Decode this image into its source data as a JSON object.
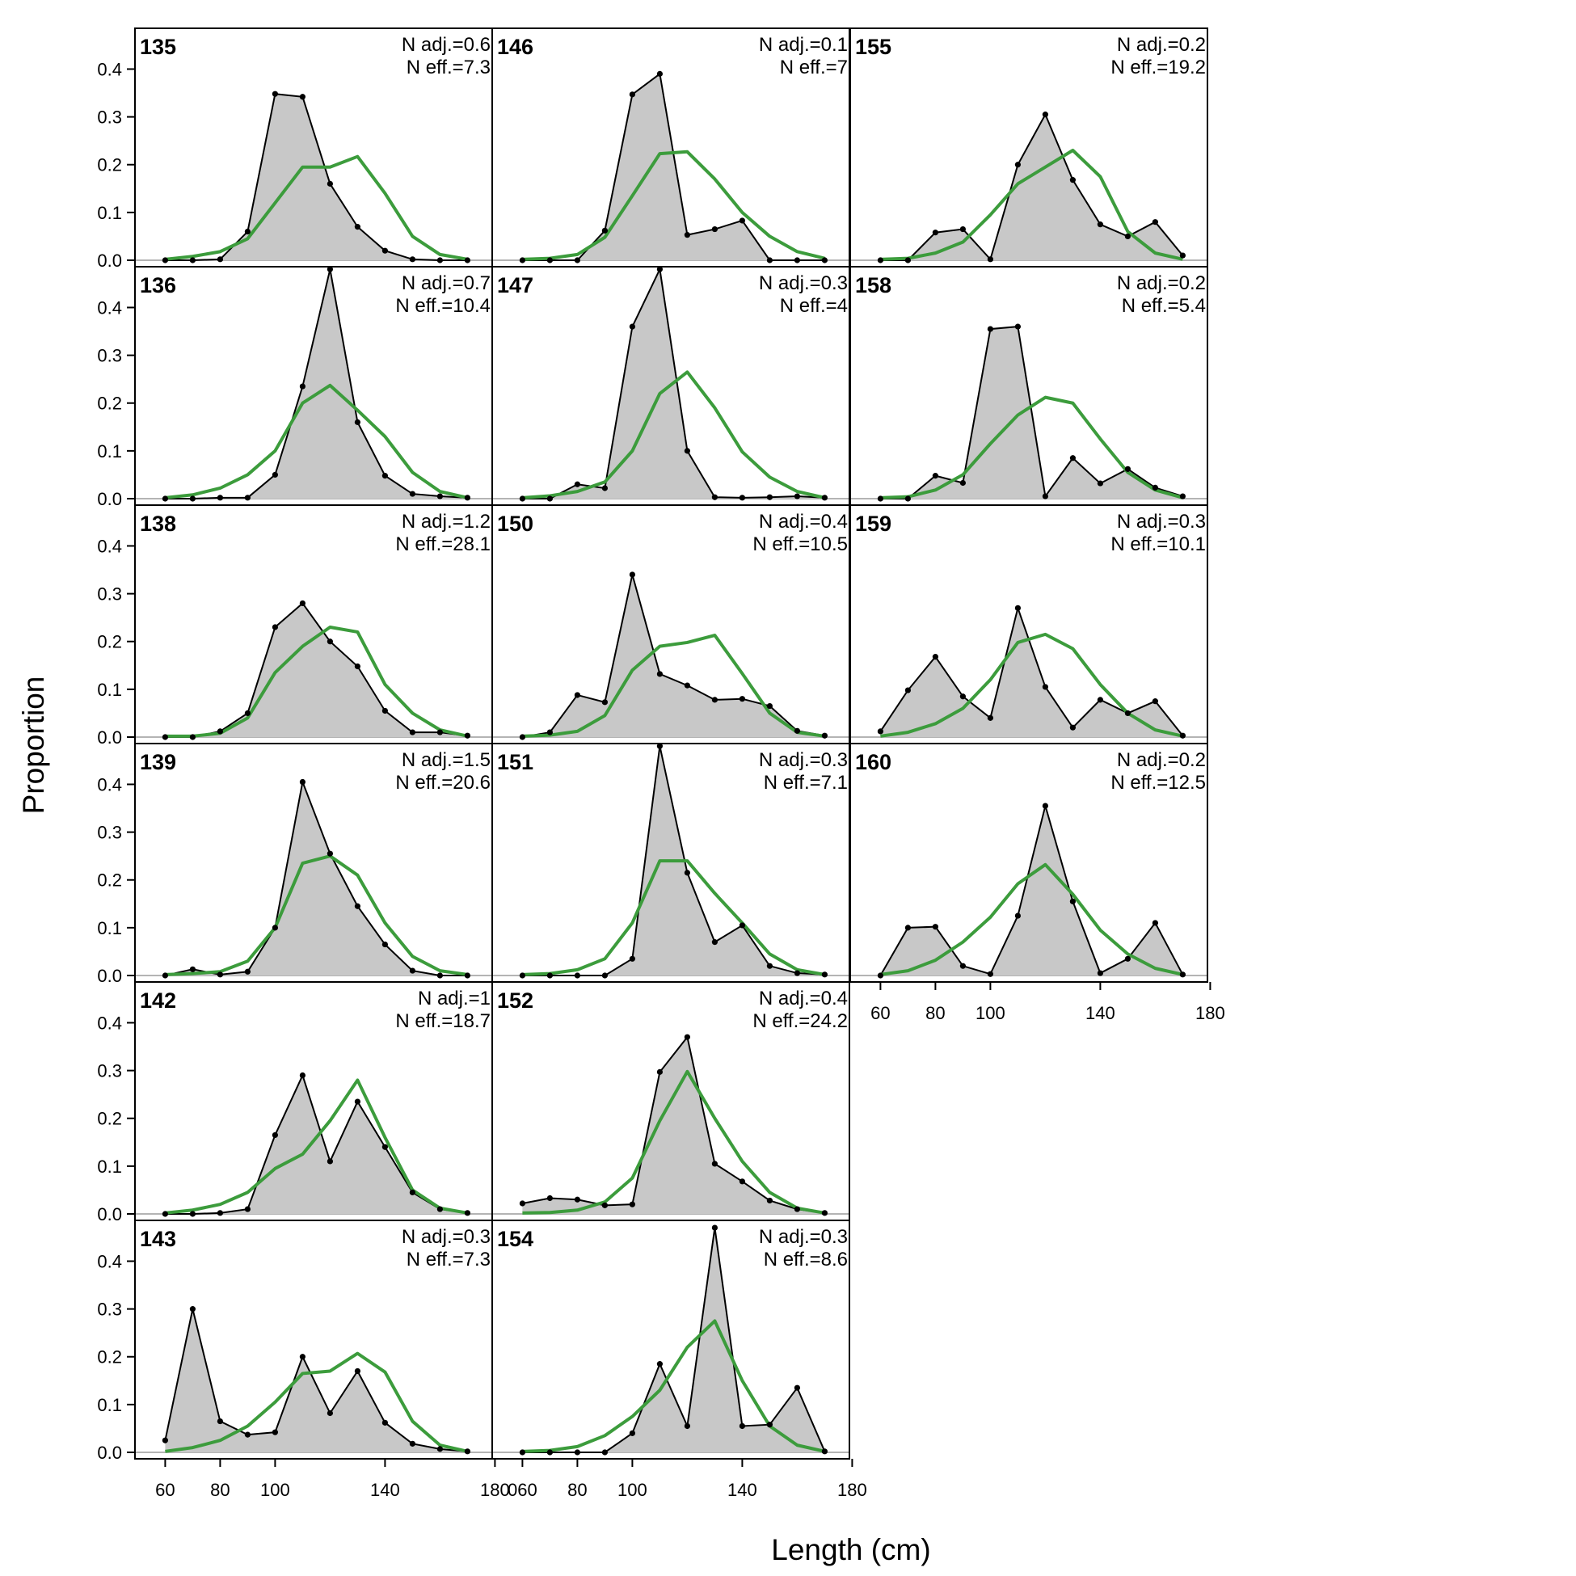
{
  "chart_data": {
    "type": "area",
    "xlabel": "Length (cm)",
    "ylabel": "Proportion",
    "xlim": [
      49,
      179
    ],
    "ylim": [
      0,
      0.46
    ],
    "x_ticks": [
      60,
      80,
      100,
      140,
      180
    ],
    "y_ticks": [
      0.0,
      0.1,
      0.2,
      0.3,
      0.4
    ],
    "y_tick_labels": [
      "0.0",
      "0.1",
      "0.2",
      "0.3",
      "0.4"
    ],
    "x_tick_labels_col1": [
      "60",
      "80",
      "100",
      "140",
      "180"
    ],
    "x_tick_labels_col2": [
      "060",
      "80",
      "100",
      "140",
      "180"
    ],
    "x_tick_labels_col3": [
      "60",
      "80",
      "100",
      "140",
      "180"
    ],
    "x": [
      60,
      70,
      80,
      90,
      100,
      110,
      120,
      130,
      140,
      150,
      160,
      170
    ],
    "colors": {
      "observed_fill": "#c8c8c8",
      "observed_line": "#000000",
      "expected_line": "#3c9c3c",
      "zero_line": "#b4b4b4"
    },
    "panels": [
      {
        "id": "135",
        "col": 0,
        "row": 0,
        "nadj": "N adj.=0.6",
        "neff": "N eff.=7.3",
        "observed": [
          0,
          0,
          0.002,
          0.06,
          0.348,
          0.342,
          0.16,
          0.07,
          0.02,
          0.002,
          0,
          0
        ],
        "expected": [
          0.002,
          0.008,
          0.018,
          0.045,
          0.12,
          0.195,
          0.195,
          0.217,
          0.14,
          0.05,
          0.012,
          0.002
        ]
      },
      {
        "id": "136",
        "col": 0,
        "row": 1,
        "nadj": "N adj.=0.7",
        "neff": "N eff.=10.4",
        "observed": [
          0,
          0,
          0.002,
          0.002,
          0.05,
          0.235,
          0.48,
          0.16,
          0.048,
          0.01,
          0.005,
          0.002
        ],
        "expected": [
          0.002,
          0.008,
          0.022,
          0.05,
          0.1,
          0.2,
          0.237,
          0.185,
          0.13,
          0.055,
          0.015,
          0.002
        ]
      },
      {
        "id": "138",
        "col": 0,
        "row": 2,
        "nadj": "N adj.=1.2",
        "neff": "N eff.=28.1",
        "observed": [
          0,
          0,
          0.012,
          0.05,
          0.23,
          0.28,
          0.2,
          0.148,
          0.055,
          0.01,
          0.01,
          0.003
        ],
        "expected": [
          0.002,
          0.002,
          0.008,
          0.04,
          0.135,
          0.19,
          0.23,
          0.22,
          0.11,
          0.05,
          0.015,
          0.002
        ]
      },
      {
        "id": "139",
        "col": 0,
        "row": 3,
        "nadj": "N adj.=1.5",
        "neff": "N eff.=20.6",
        "observed": [
          0,
          0.013,
          0.002,
          0.008,
          0.1,
          0.405,
          0.255,
          0.145,
          0.065,
          0.01,
          0,
          0
        ],
        "expected": [
          0.002,
          0.004,
          0.008,
          0.03,
          0.1,
          0.235,
          0.25,
          0.21,
          0.11,
          0.04,
          0.01,
          0.002
        ]
      },
      {
        "id": "142",
        "col": 0,
        "row": 4,
        "nadj": "N adj.=1",
        "neff": "N eff.=18.7",
        "observed": [
          0,
          0,
          0.002,
          0.01,
          0.165,
          0.29,
          0.11,
          0.235,
          0.14,
          0.045,
          0.01,
          0.002
        ],
        "expected": [
          0.002,
          0.008,
          0.02,
          0.045,
          0.095,
          0.125,
          0.195,
          0.28,
          0.16,
          0.05,
          0.012,
          0.002
        ]
      },
      {
        "id": "143",
        "col": 0,
        "row": 5,
        "nadj": "N adj.=0.3",
        "neff": "N eff.=7.3",
        "observed": [
          0.025,
          0.3,
          0.065,
          0.037,
          0.042,
          0.2,
          0.082,
          0.17,
          0.062,
          0.018,
          0.007,
          0.002
        ],
        "expected": [
          0.002,
          0.01,
          0.025,
          0.055,
          0.105,
          0.165,
          0.17,
          0.207,
          0.168,
          0.065,
          0.015,
          0.002
        ]
      },
      {
        "id": "146",
        "col": 1,
        "row": 0,
        "nadj": "N adj.=0.1",
        "neff": "N eff.=7",
        "observed": [
          0,
          0,
          0,
          0.062,
          0.347,
          0.39,
          0.053,
          0.065,
          0.083,
          0,
          0,
          0
        ],
        "expected": [
          0.002,
          0.004,
          0.012,
          0.048,
          0.135,
          0.223,
          0.227,
          0.17,
          0.1,
          0.05,
          0.018,
          0.004
        ]
      },
      {
        "id": "147",
        "col": 1,
        "row": 1,
        "nadj": "N adj.=0.3",
        "neff": "N eff.=4",
        "observed": [
          0,
          0,
          0.03,
          0.022,
          0.36,
          0.48,
          0.1,
          0.003,
          0.002,
          0.003,
          0.005,
          0.002
        ],
        "expected": [
          0.002,
          0.006,
          0.015,
          0.035,
          0.1,
          0.22,
          0.265,
          0.19,
          0.098,
          0.045,
          0.015,
          0.002
        ]
      },
      {
        "id": "150",
        "col": 1,
        "row": 2,
        "nadj": "N adj.=0.4",
        "neff": "N eff.=10.5",
        "observed": [
          0,
          0.01,
          0.088,
          0.073,
          0.34,
          0.132,
          0.108,
          0.078,
          0.08,
          0.065,
          0.013,
          0.003
        ],
        "expected": [
          0.002,
          0.004,
          0.012,
          0.045,
          0.14,
          0.19,
          0.198,
          0.213,
          0.133,
          0.05,
          0.01,
          0.002
        ]
      },
      {
        "id": "151",
        "col": 1,
        "row": 3,
        "nadj": "N adj.=0.3",
        "neff": "N eff.=7.1",
        "observed": [
          0,
          0,
          0,
          0,
          0.035,
          0.48,
          0.215,
          0.07,
          0.105,
          0.02,
          0.005,
          0.002
        ],
        "expected": [
          0.002,
          0.004,
          0.012,
          0.035,
          0.11,
          0.24,
          0.24,
          0.172,
          0.11,
          0.045,
          0.012,
          0.002
        ]
      },
      {
        "id": "152",
        "col": 1,
        "row": 4,
        "nadj": "N adj.=0.4",
        "neff": "N eff.=24.2",
        "observed": [
          0.022,
          0.033,
          0.03,
          0.018,
          0.02,
          0.297,
          0.37,
          0.105,
          0.068,
          0.028,
          0.01,
          0.002
        ],
        "expected": [
          0.002,
          0.003,
          0.008,
          0.025,
          0.075,
          0.195,
          0.298,
          0.2,
          0.11,
          0.045,
          0.012,
          0.002
        ]
      },
      {
        "id": "154",
        "col": 1,
        "row": 5,
        "nadj": "N adj.=0.3",
        "neff": "N eff.=8.6",
        "observed": [
          0,
          0,
          0,
          0,
          0.04,
          0.185,
          0.055,
          0.47,
          0.055,
          0.058,
          0.135,
          0.002
        ],
        "expected": [
          0.002,
          0.004,
          0.012,
          0.035,
          0.075,
          0.13,
          0.22,
          0.275,
          0.15,
          0.055,
          0.015,
          0.002
        ]
      },
      {
        "id": "155",
        "col": 2,
        "row": 0,
        "nadj": "N adj.=0.2",
        "neff": "N eff.=19.2",
        "observed": [
          0,
          0,
          0.058,
          0.065,
          0.002,
          0.2,
          0.305,
          0.168,
          0.075,
          0.05,
          0.08,
          0.01
        ],
        "expected": [
          0.002,
          0.004,
          0.015,
          0.038,
          0.095,
          0.16,
          0.195,
          0.23,
          0.175,
          0.06,
          0.015,
          0.002
        ]
      },
      {
        "id": "158",
        "col": 2,
        "row": 1,
        "nadj": "N adj.=0.2",
        "neff": "N eff.=5.4",
        "observed": [
          0,
          0,
          0.048,
          0.033,
          0.355,
          0.36,
          0.005,
          0.085,
          0.032,
          0.062,
          0.023,
          0.005
        ],
        "expected": [
          0.002,
          0.004,
          0.018,
          0.05,
          0.115,
          0.175,
          0.212,
          0.2,
          0.125,
          0.055,
          0.018,
          0.002
        ]
      },
      {
        "id": "159",
        "col": 2,
        "row": 2,
        "nadj": "N adj.=0.3",
        "neff": "N eff.=10.1",
        "observed": [
          0.012,
          0.098,
          0.168,
          0.085,
          0.04,
          0.27,
          0.105,
          0.02,
          0.078,
          0.05,
          0.075,
          0.003
        ],
        "expected": [
          0.002,
          0.01,
          0.028,
          0.06,
          0.12,
          0.198,
          0.215,
          0.185,
          0.11,
          0.05,
          0.015,
          0.002
        ]
      },
      {
        "id": "160",
        "col": 2,
        "row": 3,
        "nadj": "N adj.=0.2",
        "neff": "N eff.=12.5",
        "observed": [
          0,
          0.1,
          0.102,
          0.02,
          0.003,
          0.125,
          0.355,
          0.155,
          0.005,
          0.035,
          0.11,
          0.002
        ],
        "expected": [
          0.002,
          0.01,
          0.032,
          0.07,
          0.122,
          0.192,
          0.232,
          0.17,
          0.095,
          0.045,
          0.015,
          0.002
        ]
      }
    ]
  }
}
